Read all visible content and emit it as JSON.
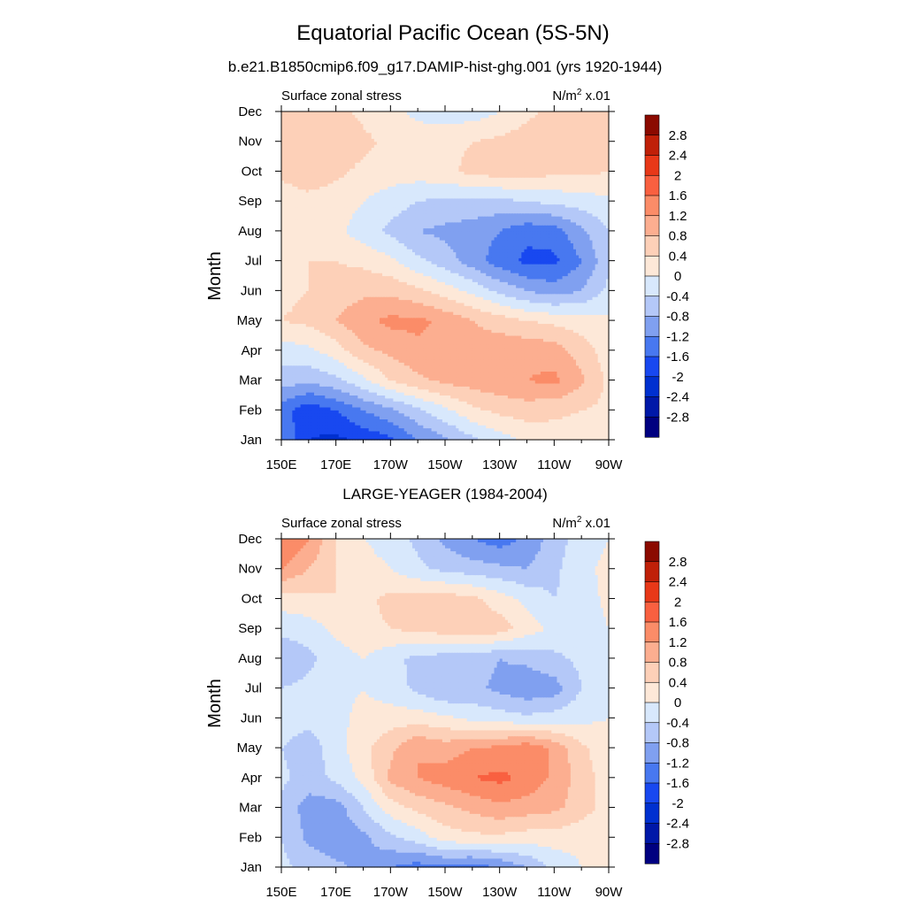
{
  "figure": {
    "title": "Equatorial Pacific Ocean (5S-5N)"
  },
  "colors": {
    "levels": [
      -2.8,
      -2.4,
      -2.0,
      -1.6,
      -1.2,
      -0.8,
      -0.4,
      0,
      0.4,
      0.8,
      1.2,
      1.6,
      2.0,
      2.4,
      2.8
    ],
    "palette": [
      "#000080",
      "#0018a8",
      "#0030d0",
      "#1848f0",
      "#4878f0",
      "#80a0f0",
      "#b4c8f8",
      "#d8e8fc",
      "#fde8d8",
      "#fdd0b8",
      "#fcae90",
      "#fb8c68",
      "#f96040",
      "#e83818",
      "#c02008",
      "#8b0a00"
    ]
  },
  "chart_data": [
    {
      "type": "heatmap",
      "subtitle": "b.e21.B1850cmip6.f09_g17.DAMIP-hist-ghg.001 (yrs 1920-1944)",
      "left_label": "Surface zonal stress",
      "units_label": "N/m",
      "units_sup": "2",
      "units_scale": " x.01",
      "ylabel": "Month",
      "xlabel": "",
      "x": [
        150,
        160,
        170,
        180,
        190,
        200,
        210,
        220,
        230,
        240,
        250,
        260,
        270
      ],
      "xticks": [
        150,
        170,
        190,
        210,
        230,
        250,
        270
      ],
      "xtick_labels": [
        "150E",
        "170E",
        "170W",
        "150W",
        "130W",
        "110W",
        "90W"
      ],
      "y": [
        "Jan",
        "Feb",
        "Mar",
        "Apr",
        "May",
        "Jun",
        "Jul",
        "Aug",
        "Sep",
        "Oct",
        "Nov",
        "Dec"
      ],
      "colorbar_labels": [
        "2.8",
        "2.4",
        "2",
        "1.6",
        "1.2",
        "0.8",
        "0.4",
        "0",
        "-0.4",
        "-0.8",
        "-1.2",
        "-1.6",
        "-2",
        "-2.4",
        "-2.8"
      ],
      "z": [
        [
          -1.2,
          -2.0,
          -2.1,
          -1.9,
          -1.7,
          -1.2,
          -0.9,
          -0.5,
          -0.2,
          0.1,
          0.2,
          0.2,
          0.2
        ],
        [
          -1.4,
          -1.9,
          -1.6,
          -1.2,
          -0.9,
          -0.5,
          -0.1,
          0.3,
          0.5,
          0.6,
          0.5,
          0.4,
          0.3
        ],
        [
          -0.6,
          -0.7,
          -0.5,
          -0.1,
          0.4,
          0.7,
          0.9,
          1.0,
          1.1,
          1.2,
          1.3,
          0.9,
          0.3
        ],
        [
          -0.2,
          -0.1,
          0.2,
          0.7,
          0.9,
          1.1,
          1.1,
          1.0,
          1.1,
          1.1,
          1.0,
          0.6,
          0.2
        ],
        [
          0.4,
          0.5,
          0.8,
          1.1,
          1.3,
          1.3,
          1.1,
          0.8,
          0.6,
          0.4,
          0.3,
          0.2,
          0.1
        ],
        [
          0.3,
          0.4,
          0.6,
          0.7,
          0.7,
          0.5,
          0.2,
          -0.1,
          -0.5,
          -0.8,
          -1.0,
          -0.8,
          -0.3
        ],
        [
          0.3,
          0.4,
          0.4,
          0.3,
          0.1,
          -0.3,
          -0.6,
          -1.0,
          -1.4,
          -1.7,
          -1.7,
          -1.2,
          -0.5
        ],
        [
          0.1,
          0.2,
          0.1,
          -0.2,
          -0.5,
          -0.8,
          -0.9,
          -1.0,
          -1.2,
          -1.5,
          -1.4,
          -0.9,
          -0.4
        ],
        [
          0.2,
          0.3,
          0.2,
          0.0,
          -0.2,
          -0.4,
          -0.5,
          -0.5,
          -0.5,
          -0.4,
          -0.3,
          -0.2,
          -0.1
        ],
        [
          0.5,
          0.6,
          0.5,
          0.3,
          0.2,
          0.2,
          0.3,
          0.5,
          0.6,
          0.6,
          0.5,
          0.5,
          0.4
        ],
        [
          0.6,
          0.8,
          0.7,
          0.5,
          0.3,
          0.2,
          0.3,
          0.4,
          0.5,
          0.6,
          0.7,
          0.7,
          0.6
        ],
        [
          0.5,
          0.6,
          0.5,
          0.3,
          0.1,
          -0.1,
          -0.2,
          -0.2,
          0.0,
          0.3,
          0.5,
          0.5,
          0.4
        ]
      ]
    },
    {
      "type": "heatmap",
      "subtitle": "LARGE-YEAGER (1984-2004)",
      "left_label": "Surface zonal stress",
      "units_label": "N/m",
      "units_sup": "2",
      "units_scale": " x.01",
      "ylabel": "Month",
      "xlabel": "",
      "x": [
        150,
        160,
        170,
        180,
        190,
        200,
        210,
        220,
        230,
        240,
        250,
        260,
        270
      ],
      "xticks": [
        150,
        170,
        190,
        210,
        230,
        250,
        270
      ],
      "xtick_labels": [
        "150E",
        "170E",
        "170W",
        "150W",
        "130W",
        "110W",
        "90W"
      ],
      "y": [
        "Jan",
        "Feb",
        "Mar",
        "Apr",
        "May",
        "Jun",
        "Jul",
        "Aug",
        "Sep",
        "Oct",
        "Nov",
        "Dec"
      ],
      "colorbar_labels": [
        "2.8",
        "2.4",
        "2",
        "1.6",
        "1.2",
        "0.8",
        "0.4",
        "0",
        "-0.4",
        "-0.8",
        "-1.2",
        "-1.6",
        "-2",
        "-2.4",
        "-2.8"
      ],
      "z": [
        [
          -0.3,
          -0.5,
          -0.7,
          -0.9,
          -1.2,
          -1.4,
          -1.3,
          -1.4,
          -1.2,
          -0.8,
          -0.3,
          0.0,
          0.1
        ],
        [
          -0.4,
          -0.9,
          -1.1,
          -0.9,
          -0.5,
          -0.2,
          0.2,
          0.3,
          0.3,
          0.2,
          0.2,
          0.1,
          0.0
        ],
        [
          -0.5,
          -1.0,
          -1.0,
          -0.4,
          0.2,
          0.5,
          0.7,
          0.9,
          1.1,
          1.0,
          0.9,
          0.6,
          0.2
        ],
        [
          -0.3,
          -0.6,
          -0.3,
          0.1,
          0.9,
          1.2,
          1.4,
          1.6,
          1.7,
          1.5,
          1.1,
          0.6,
          0.2
        ],
        [
          -0.4,
          -0.6,
          -0.2,
          0.3,
          0.7,
          1.2,
          1.0,
          1.2,
          1.3,
          1.5,
          1.1,
          0.5,
          0.1
        ],
        [
          -0.2,
          -0.3,
          -0.1,
          0.1,
          0.2,
          0.2,
          0.1,
          -0.1,
          -0.2,
          -0.3,
          -0.2,
          -0.1,
          0.0
        ],
        [
          -0.4,
          -0.3,
          -0.1,
          0.0,
          -0.2,
          -0.5,
          -0.8,
          -0.7,
          -0.9,
          -1.1,
          -1.0,
          -0.4,
          -0.1
        ],
        [
          -0.7,
          -0.5,
          -0.2,
          0.0,
          -0.3,
          -0.5,
          -0.6,
          -0.6,
          -0.8,
          -0.7,
          -0.5,
          -0.3,
          0.0
        ],
        [
          -0.3,
          -0.2,
          0.1,
          0.3,
          0.4,
          0.5,
          0.6,
          0.7,
          0.6,
          0.2,
          -0.1,
          -0.2,
          0.0
        ],
        [
          0.2,
          0.3,
          0.4,
          0.3,
          0.5,
          0.6,
          0.6,
          0.5,
          0.2,
          -0.1,
          -0.4,
          -0.2,
          0.1
        ],
        [
          1.2,
          0.8,
          0.4,
          0.2,
          0.0,
          -0.3,
          -0.5,
          -0.6,
          -0.7,
          -0.8,
          -0.5,
          -0.1,
          0.1
        ],
        [
          1.6,
          1.2,
          0.4,
          0.0,
          -0.2,
          -0.5,
          -0.9,
          -1.2,
          -1.4,
          -1.1,
          -0.6,
          -0.2,
          0.0
        ]
      ]
    }
  ]
}
